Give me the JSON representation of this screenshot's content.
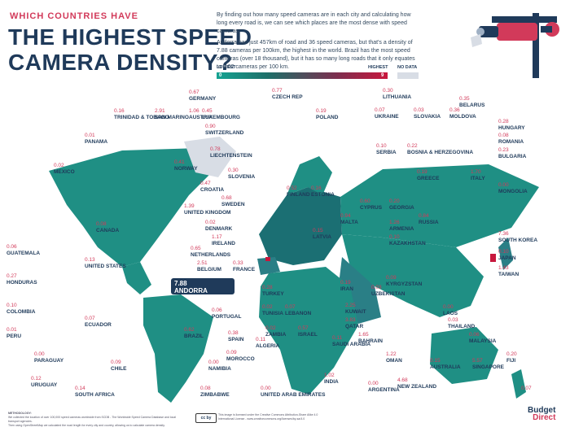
{
  "header": {
    "kicker": "WHICH COUNTRIES HAVE",
    "title_line1": "THE HIGHEST SPEED",
    "title_line2": "CAMERA DENSITY?",
    "intro_p1": "By finding out how many speed cameras are in each city and calculating how long every road is, we can see which places are the most dense with speed cameras.",
    "intro_p2": "Andorra has just 457km of road and 36 speed cameras, but that's a density of 7.88 cameras per 100km, the highest in the world. Brazil has the most speed cameras (over 18 thousand), but it has so many long roads that it only equates to 0.62 cameras per 100 km."
  },
  "legend": {
    "lowest": "LOWEST",
    "highest": "HIGHEST",
    "no_data": "NO DATA",
    "min": "0",
    "max": "9"
  },
  "colors": {
    "low": "#15a392",
    "mid": "#1e6f69",
    "high": "#c8173d",
    "no_data": "#d8dde5",
    "land": "#1f8f84",
    "accent": "#d23a5a",
    "navy": "#1f3a5a"
  },
  "chart_data": {
    "type": "choropleth",
    "title": "THE HIGHEST SPEED CAMERA DENSITY?",
    "unit": "cameras per 100km",
    "scale": [
      0,
      9
    ],
    "countries": [
      {
        "name": "TRINIDAD & TOBAGO",
        "value": 0.16
      },
      {
        "name": "SAN MARINO",
        "value": 2.91
      },
      {
        "name": "AUSTRIA",
        "value": 1.06
      },
      {
        "name": "GERMANY",
        "value": 0.67
      },
      {
        "name": "LUXEMBOURG",
        "value": 0.45
      },
      {
        "name": "SWITZERLAND",
        "value": 0.9
      },
      {
        "name": "CZECH REP",
        "value": 0.77
      },
      {
        "name": "POLAND",
        "value": 0.19
      },
      {
        "name": "LITHUANIA",
        "value": 0.3
      },
      {
        "name": "BELARUS",
        "value": 0.35
      },
      {
        "name": "UKRAINE",
        "value": 0.07
      },
      {
        "name": "SLOVAKIA",
        "value": 0.03
      },
      {
        "name": "MOLDOVA",
        "value": 0.36
      },
      {
        "name": "HUNGARY",
        "value": 0.28
      },
      {
        "name": "ROMANIA",
        "value": 0.08
      },
      {
        "name": "BULGARIA",
        "value": 0.23
      },
      {
        "name": "SERBIA",
        "value": 0.1
      },
      {
        "name": "BOSNIA & HERZEGOVINA",
        "value": 0.22
      },
      {
        "name": "PANAMA",
        "value": 0.01
      },
      {
        "name": "LIECHTENSTEIN",
        "value": 0.78
      },
      {
        "name": "NORWAY",
        "value": 0.41
      },
      {
        "name": "SLOVENIA",
        "value": 0.3
      },
      {
        "name": "MEXICO",
        "value": 0.02
      },
      {
        "name": "CROATIA",
        "value": 0.47
      },
      {
        "name": "SWEDEN",
        "value": 0.68
      },
      {
        "name": "FINLAND",
        "value": 0.52
      },
      {
        "name": "ESTONIA",
        "value": 0.16
      },
      {
        "name": "GREECE",
        "value": 0.19
      },
      {
        "name": "ITALY",
        "value": 1.7
      },
      {
        "name": "MONGOLIA",
        "value": 0.0
      },
      {
        "name": "UNITED KINGDOM",
        "value": 1.39
      },
      {
        "name": "CYPRUS",
        "value": 0.6
      },
      {
        "name": "GEORGIA",
        "value": 0.2
      },
      {
        "name": "CANADA",
        "value": 0.08
      },
      {
        "name": "DENMARK",
        "value": 0.02
      },
      {
        "name": "MALTA",
        "value": 0.94
      },
      {
        "name": "ARMENIA",
        "value": 1.26
      },
      {
        "name": "RUSSIA",
        "value": 0.84
      },
      {
        "name": "IRELAND",
        "value": 1.17
      },
      {
        "name": "LATVIA",
        "value": 0.15
      },
      {
        "name": "KAZAKHSTAN",
        "value": 0.1
      },
      {
        "name": "SOUTH KOREA",
        "value": 7.36
      },
      {
        "name": "GUATEMALA",
        "value": 0.06
      },
      {
        "name": "NETHERLANDS",
        "value": 0.65
      },
      {
        "name": "UNITED STATES",
        "value": 0.13
      },
      {
        "name": "BELGIUM",
        "value": 2.51
      },
      {
        "name": "FRANCE",
        "value": 0.33
      },
      {
        "name": "JAPAN",
        "value": 0.1
      },
      {
        "name": "KYRGYZSTAN",
        "value": 0.09
      },
      {
        "name": "HONDURAS",
        "value": 0.27
      },
      {
        "name": "TAIWAN",
        "value": 1.43
      },
      {
        "name": "ANDORRA",
        "value": 7.88
      },
      {
        "name": "TURKEY",
        "value": 0.28
      },
      {
        "name": "IRAN",
        "value": 0.19
      },
      {
        "name": "UZBEKISTAN",
        "value": 0.03
      },
      {
        "name": "COLOMBIA",
        "value": 0.1
      },
      {
        "name": "TUNISIA",
        "value": 0.02
      },
      {
        "name": "LEBANON",
        "value": 0.07
      },
      {
        "name": "KUWAIT",
        "value": 2.25
      },
      {
        "name": "LAOS",
        "value": 0.0
      },
      {
        "name": "PORTUGAL",
        "value": 0.06
      },
      {
        "name": "QATAR",
        "value": 3.83
      },
      {
        "name": "THAILAND",
        "value": 0.03
      },
      {
        "name": "PERU",
        "value": 0.01
      },
      {
        "name": "ECUADOR",
        "value": 0.07
      },
      {
        "name": "SPAIN",
        "value": 0.38
      },
      {
        "name": "ZAMBIA",
        "value": 0.02
      },
      {
        "name": "ISRAEL",
        "value": 0.57
      },
      {
        "name": "BAHRAIN",
        "value": 1.65
      },
      {
        "name": "MALAYSIA",
        "value": 0.06
      },
      {
        "name": "BRAZIL",
        "value": 0.62
      },
      {
        "name": "ALGERIA",
        "value": 0.11
      },
      {
        "name": "SAUDI ARABIA",
        "value": 0.11
      },
      {
        "name": "PARAGUAY",
        "value": 0.0
      },
      {
        "name": "MOROCCO",
        "value": 0.09
      },
      {
        "name": "OMAN",
        "value": 1.22
      },
      {
        "name": "FIJI",
        "value": 0.2
      },
      {
        "name": "CHILE",
        "value": 0.09
      },
      {
        "name": "NAMIBIA",
        "value": 0.0
      },
      {
        "name": "AUSTRALIA",
        "value": 0.15
      },
      {
        "name": "SINGAPORE",
        "value": 5.57
      },
      {
        "name": "URUGUAY",
        "value": 0.12
      },
      {
        "name": "MAURITIUS",
        "value": 1.02
      },
      {
        "name": "INDIA",
        "value": 0.0
      },
      {
        "name": "ARGENTINA",
        "value": 0.14
      },
      {
        "name": "SOUTH AFRICA",
        "value": 0.08
      },
      {
        "name": "ZIMBABWE",
        "value": 0.0
      },
      {
        "name": "UNITED ARAB EMIRATES",
        "value": 4.68
      },
      {
        "name": "NEW ZEALAND",
        "value": 0.07
      }
    ]
  },
  "labels": {
    "TRINIDAD & TOBAGO": "0.16",
    "SAN MARINO": "2.91",
    "AUSTRIA": "1.06",
    "GERMANY": "0.67",
    "LUXEMBOURG": "0.45",
    "SWITZERLAND": "0.90",
    "CZECH REP": "0.77",
    "POLAND": "0.19",
    "LITHUANIA": "0.30",
    "BELARUS": "0.35",
    "UKRAINE": "0.07",
    "SLOVAKIA": "0.03",
    "MOLDOVA": "0.36",
    "HUNGARY": "0.28",
    "ROMANIA": "0.08",
    "BULGARIA": "0.23",
    "SERBIA": "0.10",
    "BOSNIA & HERZEGOVINA": "0.22",
    "PANAMA": "0.01",
    "LIECHTENSTEIN": "0.78",
    "NORWAY": "0.41",
    "SLOVENIA": "0.30",
    "MEXICO": "0.02",
    "CROATIA": "0.47",
    "SWEDEN": "0.68",
    "FINLAND": "0.52",
    "ESTONIA": "0.16",
    "GREECE": "0.19",
    "ITALY": "1.70",
    "MONGOLIA": "0.00",
    "UNITED KINGDOM": "1.39",
    "CYPRUS": "0.60",
    "GEORGIA": "0.20",
    "CANADA": "0.08",
    "DENMARK": "0.02",
    "MALTA": "0.94",
    "ARMENIA": "1.26",
    "RUSSIA": "0.84",
    "IRELAND": "1.17",
    "LATVIA": "0.15",
    "KAZAKHSTAN": "0.10",
    "SOUTH KOREA": "7.36",
    "GUATEMALA": "0.06",
    "NETHERLANDS": "0.65",
    "UNITED STATES": "0.13",
    "BELGIUM": "2.51",
    "FRANCE": "0.33",
    "JAPAN": "0.10",
    "KYRGYZSTAN": "0.09",
    "HONDURAS": "0.27",
    "TAIWAN": "1.43",
    "ANDORRA": "7.88",
    "TURKEY": "0.28",
    "IRAN": "0.19",
    "UZBEKISTAN": "0.03",
    "COLOMBIA": "0.10",
    "TUNISIA": "0.02",
    "LEBANON": "0.07",
    "KUWAIT": "2.25",
    "LAOS": "0.00",
    "PORTUGAL": "0.06",
    "QATAR": "3.83",
    "THAILAND": "0.03",
    "PERU": "0.01",
    "ECUADOR": "0.07",
    "SPAIN": "0.38",
    "ZAMBIA": "0.02",
    "ISRAEL": "0.57",
    "BAHRAIN": "1.65",
    "MALAYSIA": "0.06",
    "BRAZIL": "0.62",
    "ALGERIA": "0.11",
    "SAUDI ARABIA": "0.11",
    "PARAGUAY": "0.00",
    "MOROCCO": "0.09",
    "OMAN": "1.22",
    "FIJI": "0.20",
    "CHILE": "0.09",
    "NAMIBIA": "0.00",
    "AUSTRALIA": "0.15",
    "SINGAPORE": "5.57",
    "URUGUAY": "0.12",
    "MAURITIUS": "1.02",
    "INDIA": "0.00",
    "ARGENTINA": "0.14",
    "SOUTH AFRICA": "0.08",
    "ZIMBABWE": "0.00",
    "UNITED ARAB EMIRATES": "4.68",
    "NEW ZEALAND": "0.07"
  },
  "footer": {
    "methodology_title": "METHODOLOGY:",
    "methodology_line1": "We collected the location of over 100,000 speed cameras worldwide from SCDB - The Worldwide Speed Camera Database and local transport agencies.",
    "methodology_line2": "Then using OpenStreetMap we calculated the road length for every city and country, allowing us to calculate camera density.",
    "license_badge": "cc by",
    "license_text": "This image is licensed under the Creative Commons Attribution-Share Alike 4.0 International License - www.creativecommons.org/licenses/by-sa/4.0",
    "brand_line1": "Budget",
    "brand_line2": "Direct"
  }
}
